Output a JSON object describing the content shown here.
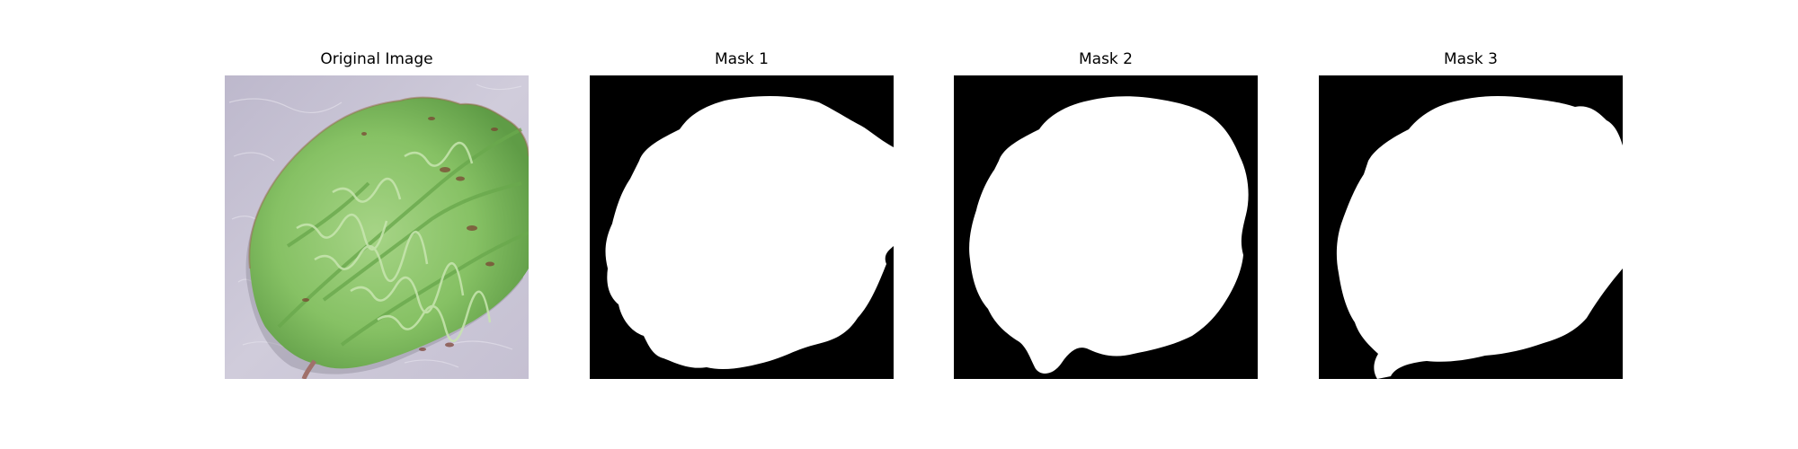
{
  "figure": {
    "panels": [
      {
        "title": "Original Image",
        "kind": "photo",
        "subject": "leaf-photo"
      },
      {
        "title": "Mask 1",
        "kind": "mask"
      },
      {
        "title": "Mask 2",
        "kind": "mask"
      },
      {
        "title": "Mask 3",
        "kind": "mask"
      }
    ],
    "colors": {
      "mask_background": "#000000",
      "mask_foreground": "#ffffff",
      "leaf_green": "#8cc46a",
      "leaf_dark": "#5e9a44",
      "leaf_vein": "#7a3e30",
      "backdrop": "#c8c4d4"
    }
  }
}
